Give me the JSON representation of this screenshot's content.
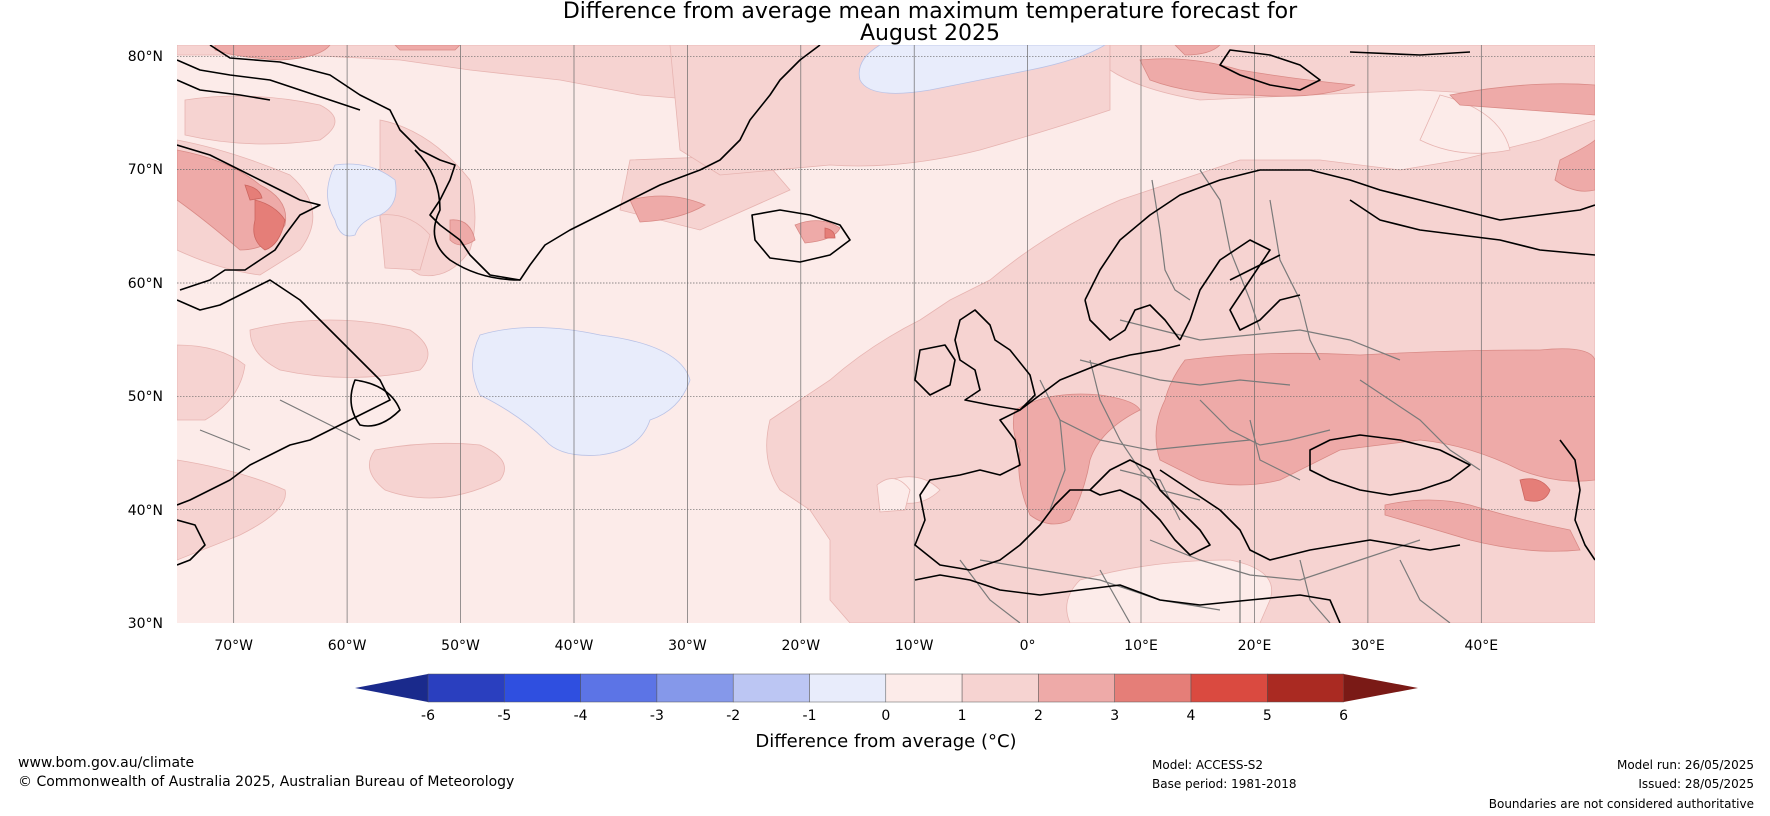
{
  "title": {
    "line1": "Difference from average mean maximum temperature forecast for",
    "line2": "August 2025"
  },
  "map": {
    "lon_range": [
      -75,
      50
    ],
    "lat_range": [
      30,
      81
    ],
    "lon_ticks": [
      "70°W",
      "60°W",
      "50°W",
      "40°W",
      "30°W",
      "20°W",
      "10°W",
      "0°",
      "10°E",
      "20°E",
      "30°E",
      "40°E"
    ],
    "lat_ticks": [
      "80°N",
      "70°N",
      "60°N",
      "50°N",
      "40°N",
      "30°N"
    ]
  },
  "colorbar": {
    "label": "Difference from average (°C)",
    "ticks": [
      "-6",
      "-5",
      "-4",
      "-3",
      "-2",
      "-1",
      "0",
      "1",
      "2",
      "3",
      "4",
      "5",
      "6"
    ],
    "colors": [
      "#1a2a8c",
      "#2a3fbf",
      "#2f4fe0",
      "#5c74e6",
      "#8598ea",
      "#bcc6f3",
      "#e8ecfb",
      "#fcebe9",
      "#f6d3d1",
      "#eeaaa8",
      "#e57e78",
      "#da4a40",
      "#aa2a22",
      "#7a1a16"
    ]
  },
  "footer": {
    "website": "www.bom.gov.au/climate",
    "copyright": "© Commonwealth of Australia 2025, Australian Bureau of Meteorology",
    "model": "Model: ACCESS-S2",
    "base_period": "Base period: 1981-2018",
    "model_run": "Model run: 26/05/2025",
    "issued": "Issued: 28/05/2025",
    "disclaimer": "Boundaries are not considered authoritative"
  }
}
